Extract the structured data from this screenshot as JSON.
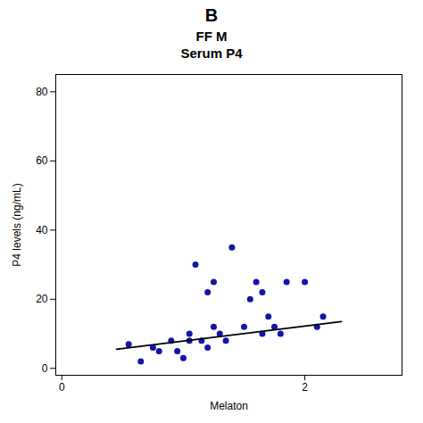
{
  "chart_data": {
    "type": "scatter",
    "title": "B",
    "subtitle": [
      "FF M",
      "Serum P4"
    ],
    "xlabel": "Melaton",
    "ylabel": "P4 levels (ng/mL)",
    "xlim": [
      -0.05,
      2.8
    ],
    "xticks": [
      0,
      2
    ],
    "ylim": [
      -2,
      85
    ],
    "yticks": [
      0,
      20,
      40,
      60,
      80
    ],
    "grid": false,
    "series": [
      {
        "type": "scatter",
        "color": "#1414aa",
        "x": [
          0.55,
          0.65,
          0.75,
          0.8,
          0.9,
          0.95,
          1.0,
          1.05,
          1.05,
          1.1,
          1.15,
          1.2,
          1.2,
          1.25,
          1.25,
          1.3,
          1.35,
          1.4,
          1.5,
          1.55,
          1.6,
          1.65,
          1.65,
          1.7,
          1.75,
          1.8,
          1.85,
          2.0,
          2.1,
          2.15
        ],
        "values": [
          7,
          2,
          6,
          5,
          8,
          5,
          3,
          8,
          10,
          30,
          8,
          22,
          6,
          25,
          12,
          10,
          8,
          35,
          12,
          20,
          25,
          10,
          22,
          15,
          12,
          10,
          25,
          25,
          12,
          15
        ]
      },
      {
        "type": "line",
        "color": "#000000",
        "x": [
          0.45,
          2.3
        ],
        "values": [
          5.5,
          13.5
        ]
      }
    ]
  }
}
